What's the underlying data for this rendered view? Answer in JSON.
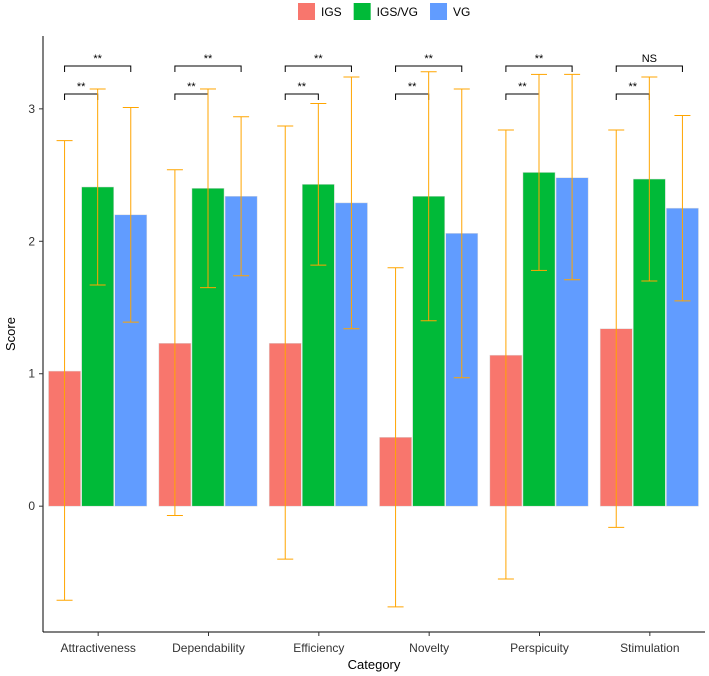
{
  "chart_data": {
    "type": "bar",
    "xlabel": "Category",
    "ylabel": "Score",
    "ylim": [
      -0.95,
      3.55
    ],
    "yticks": [
      0,
      1,
      2,
      3
    ],
    "grid": false,
    "legend_position": "top",
    "categories": [
      "Attractiveness",
      "Dependability",
      "Efficiency",
      "Novelty",
      "Perspicuity",
      "Stimulation"
    ],
    "series": [
      {
        "name": "IGS",
        "color": "#F8766D",
        "values": [
          1.02,
          1.23,
          1.23,
          0.52,
          1.14,
          1.34
        ],
        "error_low": [
          -0.71,
          -0.07,
          -0.4,
          -0.76,
          -0.55,
          -0.16
        ],
        "error_high": [
          2.76,
          2.54,
          2.87,
          1.8,
          2.84,
          2.84
        ]
      },
      {
        "name": "IGS/VG",
        "color": "#00BA38",
        "values": [
          2.41,
          2.4,
          2.43,
          2.34,
          2.52,
          2.47
        ],
        "error_low": [
          1.67,
          1.65,
          1.82,
          1.4,
          1.78,
          1.7
        ],
        "error_high": [
          3.15,
          3.15,
          3.04,
          3.28,
          3.26,
          3.24
        ]
      },
      {
        "name": "VG",
        "color": "#619CFF",
        "values": [
          2.2,
          2.34,
          2.29,
          2.06,
          2.48,
          2.25
        ],
        "error_low": [
          1.39,
          1.74,
          1.34,
          0.97,
          1.71,
          1.55
        ],
        "error_high": [
          3.01,
          2.94,
          3.24,
          3.15,
          3.26,
          2.95
        ]
      }
    ],
    "error_bar_color": "#FFA500",
    "significance": {
      "igs_vs_igsvg": [
        "**",
        "**",
        "**",
        "**",
        "**",
        "**"
      ],
      "igs_vs_vg": [
        "**",
        "**",
        "**",
        "**",
        "**",
        "NS"
      ]
    }
  }
}
